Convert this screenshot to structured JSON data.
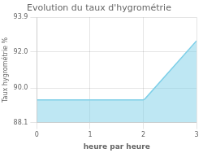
{
  "chart_data": {
    "type": "area",
    "title": "Evolution du taux d'hygrométrie",
    "xlabel": "heure par heure",
    "ylabel": "Taux hygrométrie %",
    "x": [
      0,
      1,
      2,
      2.03,
      3
    ],
    "values": [
      89.35,
      89.35,
      89.35,
      89.4,
      92.6
    ],
    "color": "#7ecfe8",
    "xlim": [
      0,
      3
    ],
    "ylim": [
      88.1,
      93.9
    ],
    "xticks": [
      0,
      1,
      2,
      3
    ],
    "yticks": [
      88.1,
      {
        "value": 90.0,
        "label": "90.0"
      },
      {
        "value": 92.0,
        "label": "92.0"
      },
      93.9
    ],
    "grid": true
  }
}
